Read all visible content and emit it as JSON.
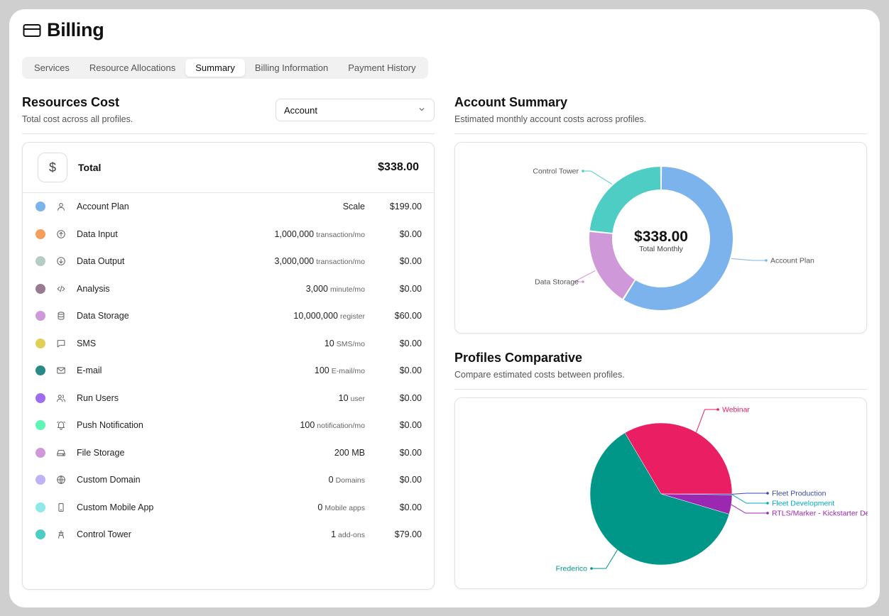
{
  "page": {
    "title": "Billing",
    "icon": "credit-card-icon"
  },
  "tabs": [
    {
      "label": "Services",
      "active": false
    },
    {
      "label": "Resource Allocations",
      "active": false
    },
    {
      "label": "Summary",
      "active": true
    },
    {
      "label": "Billing Information",
      "active": false
    },
    {
      "label": "Payment History",
      "active": false
    }
  ],
  "resources": {
    "title": "Resources Cost",
    "subtitle": "Total cost across all profiles.",
    "select_value": "Account",
    "total_label": "Total",
    "total_value": "$338.00",
    "items": [
      {
        "name": "Account Plan",
        "icon": "user-icon",
        "color": "#7cb3ec",
        "qty": "Scale",
        "unit": "",
        "price": "$199.00"
      },
      {
        "name": "Data Input",
        "icon": "arrow-up-circle-icon",
        "color": "#f59d5a",
        "qty": "1,000,000",
        "unit": "transaction/mo",
        "price": "$0.00"
      },
      {
        "name": "Data Output",
        "icon": "arrow-down-circle-icon",
        "color": "#b6cdc4",
        "qty": "3,000,000",
        "unit": "transaction/mo",
        "price": "$0.00"
      },
      {
        "name": "Analysis",
        "icon": "code-icon",
        "color": "#9a7a92",
        "qty": "3,000",
        "unit": "minute/mo",
        "price": "$0.00"
      },
      {
        "name": "Data Storage",
        "icon": "database-icon",
        "color": "#cf99d9",
        "qty": "10,000,000",
        "unit": "register",
        "price": "$60.00"
      },
      {
        "name": "SMS",
        "icon": "message-square-icon",
        "color": "#e2cf57",
        "qty": "10",
        "unit": "SMS/mo",
        "price": "$0.00"
      },
      {
        "name": "E-mail",
        "icon": "mail-icon",
        "color": "#2a8a87",
        "qty": "100",
        "unit": "E-mail/mo",
        "price": "$0.00"
      },
      {
        "name": "Run Users",
        "icon": "users-icon",
        "color": "#9f6df0",
        "qty": "10",
        "unit": "user",
        "price": "$0.00"
      },
      {
        "name": "Push Notification",
        "icon": "bell-icon",
        "color": "#5ff5b6",
        "qty": "100",
        "unit": "notification/mo",
        "price": "$0.00"
      },
      {
        "name": "File Storage",
        "icon": "hard-drive-icon",
        "color": "#cf99d9",
        "qty": "200 MB",
        "unit": "",
        "price": "$0.00"
      },
      {
        "name": "Custom Domain",
        "icon": "globe-icon",
        "color": "#bfb3f5",
        "qty": "0",
        "unit": "Domains",
        "price": "$0.00"
      },
      {
        "name": "Custom Mobile App",
        "icon": "smartphone-icon",
        "color": "#8fe9e6",
        "qty": "0",
        "unit": "Mobile apps",
        "price": "$0.00"
      },
      {
        "name": "Control Tower",
        "icon": "tower-icon",
        "color": "#4ecdc4",
        "qty": "1",
        "unit": "add-ons",
        "price": "$79.00"
      }
    ]
  },
  "account_summary": {
    "title": "Account Summary",
    "subtitle": "Estimated monthly account costs across profiles.",
    "center_value": "$338.00",
    "center_label": "Total Monthly"
  },
  "profiles": {
    "title": "Profiles Comparative",
    "subtitle": "Compare estimated costs between profiles."
  },
  "chart_data": [
    {
      "type": "pie",
      "variant": "donut",
      "categories": [
        "Account Plan",
        "Data Storage",
        "Control Tower"
      ],
      "values": [
        199,
        60,
        79
      ],
      "colors": [
        "#7cb3ec",
        "#cf99d9",
        "#4ecdc4"
      ],
      "title": "",
      "center_text": "$338.00",
      "center_subtext": "Total Monthly"
    },
    {
      "type": "pie",
      "categories": [
        "Webinar",
        "Fleet Production",
        "Fleet Development",
        "RTLS/Marker - Kickstarter Dev",
        "Frederico"
      ],
      "values": [
        33.5,
        0.1,
        0.1,
        4.4,
        61.9
      ],
      "colors": [
        "#e91e63",
        "#3949ab",
        "#00acc1",
        "#9c27b0",
        "#009688"
      ],
      "title": ""
    }
  ]
}
